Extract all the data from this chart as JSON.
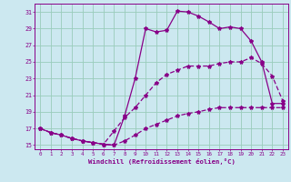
{
  "xlabel": "Windchill (Refroidissement éolien,°C)",
  "bg_color": "#cce8f0",
  "grid_color": "#99ccbb",
  "line_color": "#880088",
  "xlim": [
    -0.5,
    23.5
  ],
  "ylim": [
    14.5,
    32.0
  ],
  "xticks": [
    0,
    1,
    2,
    3,
    4,
    5,
    6,
    7,
    8,
    9,
    10,
    11,
    12,
    13,
    14,
    15,
    16,
    17,
    18,
    19,
    20,
    21,
    22,
    23
  ],
  "yticks": [
    15,
    17,
    19,
    21,
    23,
    25,
    27,
    29,
    31
  ],
  "curve1_x": [
    0,
    1,
    2,
    3,
    4,
    5,
    6,
    7,
    8,
    9,
    10,
    11,
    12,
    13,
    14,
    15,
    16,
    17,
    18,
    19,
    20,
    21,
    22,
    23
  ],
  "curve1_y": [
    17.0,
    16.5,
    16.2,
    15.8,
    15.5,
    15.3,
    15.1,
    15.0,
    18.5,
    23.0,
    29.0,
    28.6,
    28.8,
    31.1,
    31.0,
    30.5,
    29.8,
    29.0,
    29.2,
    29.0,
    27.5,
    25.0,
    20.0,
    20.0
  ],
  "curve2_x": [
    0,
    1,
    2,
    3,
    4,
    5,
    6,
    7,
    8,
    9,
    10,
    11,
    12,
    13,
    14,
    15,
    16,
    17,
    18,
    19,
    20,
    21,
    22,
    23
  ],
  "curve2_y": [
    17.0,
    16.5,
    16.2,
    15.8,
    15.5,
    15.3,
    15.1,
    16.7,
    18.3,
    19.5,
    21.0,
    22.5,
    23.5,
    24.0,
    24.5,
    24.5,
    24.5,
    24.8,
    25.0,
    25.0,
    25.5,
    24.8,
    23.3,
    20.3
  ],
  "curve3_x": [
    0,
    1,
    2,
    3,
    4,
    5,
    6,
    7,
    8,
    9,
    10,
    11,
    12,
    13,
    14,
    15,
    16,
    17,
    18,
    19,
    20,
    21,
    22,
    23
  ],
  "curve3_y": [
    17.0,
    16.5,
    16.2,
    15.8,
    15.5,
    15.3,
    15.1,
    15.0,
    15.5,
    16.2,
    17.0,
    17.5,
    18.0,
    18.5,
    18.8,
    19.0,
    19.3,
    19.5,
    19.5,
    19.5,
    19.5,
    19.5,
    19.5,
    19.5
  ]
}
